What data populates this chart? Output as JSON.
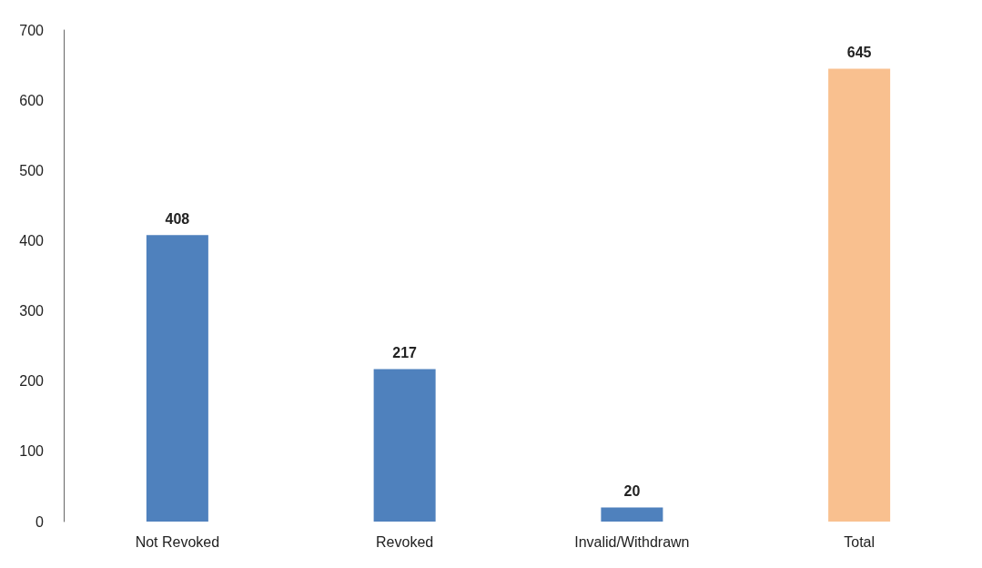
{
  "chart_data": {
    "type": "bar",
    "categories": [
      "Not Revoked",
      "Revoked",
      "Invalid/Withdrawn",
      "Total"
    ],
    "values": [
      408,
      217,
      20,
      645
    ],
    "colors": [
      "#4f81bd",
      "#4f81bd",
      "#4f81bd",
      "#f9c08f"
    ],
    "ylim": [
      0,
      700
    ],
    "yticks": [
      0,
      100,
      200,
      300,
      400,
      500,
      600,
      700
    ],
    "grid": false,
    "data_labels": true
  }
}
